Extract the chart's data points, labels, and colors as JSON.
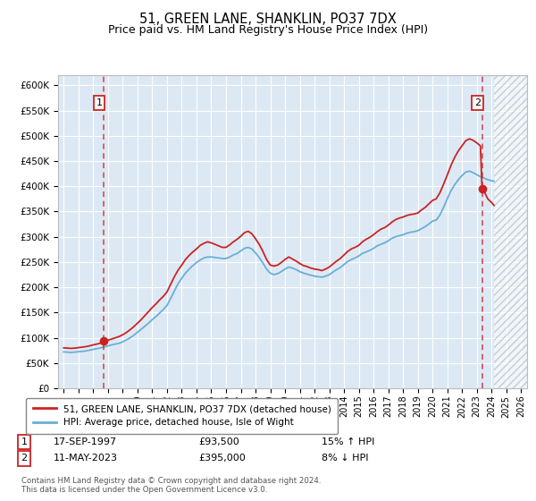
{
  "title": "51, GREEN LANE, SHANKLIN, PO37 7DX",
  "subtitle": "Price paid vs. HM Land Registry's House Price Index (HPI)",
  "title_fontsize": 10.5,
  "subtitle_fontsize": 9,
  "ylim": [
    0,
    620000
  ],
  "yticks": [
    0,
    50000,
    100000,
    150000,
    200000,
    250000,
    300000,
    350000,
    400000,
    450000,
    500000,
    550000,
    600000
  ],
  "ytick_labels": [
    "£0",
    "£50K",
    "£100K",
    "£150K",
    "£200K",
    "£250K",
    "£300K",
    "£350K",
    "£400K",
    "£450K",
    "£500K",
    "£550K",
    "£600K"
  ],
  "xlim_min": 1994.6,
  "xlim_max": 2026.4,
  "bg_color": "#dce9f5",
  "grid_color": "#ffffff",
  "sale1_year": 1997.71,
  "sale1_price": 93500,
  "sale2_year": 2023.36,
  "sale2_price": 395000,
  "sale1_date": "17-SEP-1997",
  "sale1_amount": "£93,500",
  "sale1_pct": "15% ↑ HPI",
  "sale2_date": "11-MAY-2023",
  "sale2_amount": "£395,000",
  "sale2_pct": "8% ↓ HPI",
  "hpi_color": "#6baed6",
  "price_color": "#cc2222",
  "legend_label_price": "51, GREEN LANE, SHANKLIN, PO37 7DX (detached house)",
  "legend_label_hpi": "HPI: Average price, detached house, Isle of Wight",
  "footer1": "Contains HM Land Registry data © Crown copyright and database right 2024.",
  "footer2": "This data is licensed under the Open Government Licence v3.0.",
  "hatch_start_year": 2024.17,
  "hpi_data": [
    [
      1995.0,
      72000
    ],
    [
      1995.25,
      71500
    ],
    [
      1995.5,
      71000
    ],
    [
      1995.75,
      71500
    ],
    [
      1996.0,
      72500
    ],
    [
      1996.25,
      73000
    ],
    [
      1996.5,
      74000
    ],
    [
      1996.75,
      75500
    ],
    [
      1997.0,
      77000
    ],
    [
      1997.25,
      78500
    ],
    [
      1997.5,
      80000
    ],
    [
      1997.75,
      82000
    ],
    [
      1998.0,
      84000
    ],
    [
      1998.25,
      86000
    ],
    [
      1998.5,
      87500
    ],
    [
      1998.75,
      89000
    ],
    [
      1999.0,
      92000
    ],
    [
      1999.25,
      96000
    ],
    [
      1999.5,
      100000
    ],
    [
      1999.75,
      105000
    ],
    [
      2000.0,
      111000
    ],
    [
      2000.25,
      117000
    ],
    [
      2000.5,
      123000
    ],
    [
      2000.75,
      129000
    ],
    [
      2001.0,
      136000
    ],
    [
      2001.25,
      142000
    ],
    [
      2001.5,
      149000
    ],
    [
      2001.75,
      156000
    ],
    [
      2002.0,
      164000
    ],
    [
      2002.25,
      178000
    ],
    [
      2002.5,
      193000
    ],
    [
      2002.75,
      207000
    ],
    [
      2003.0,
      218000
    ],
    [
      2003.25,
      228000
    ],
    [
      2003.5,
      236000
    ],
    [
      2003.75,
      243000
    ],
    [
      2004.0,
      249000
    ],
    [
      2004.25,
      254000
    ],
    [
      2004.5,
      258000
    ],
    [
      2004.75,
      260000
    ],
    [
      2005.0,
      260000
    ],
    [
      2005.25,
      259000
    ],
    [
      2005.5,
      258000
    ],
    [
      2005.75,
      257000
    ],
    [
      2006.0,
      257000
    ],
    [
      2006.25,
      260000
    ],
    [
      2006.5,
      264000
    ],
    [
      2006.75,
      267000
    ],
    [
      2007.0,
      272000
    ],
    [
      2007.25,
      277000
    ],
    [
      2007.5,
      279000
    ],
    [
      2007.75,
      276000
    ],
    [
      2008.0,
      268000
    ],
    [
      2008.25,
      259000
    ],
    [
      2008.5,
      248000
    ],
    [
      2008.75,
      236000
    ],
    [
      2009.0,
      228000
    ],
    [
      2009.25,
      225000
    ],
    [
      2009.5,
      227000
    ],
    [
      2009.75,
      231000
    ],
    [
      2010.0,
      236000
    ],
    [
      2010.25,
      240000
    ],
    [
      2010.5,
      238000
    ],
    [
      2010.75,
      235000
    ],
    [
      2011.0,
      231000
    ],
    [
      2011.25,
      228000
    ],
    [
      2011.5,
      226000
    ],
    [
      2011.75,
      224000
    ],
    [
      2012.0,
      222000
    ],
    [
      2012.25,
      221000
    ],
    [
      2012.5,
      220000
    ],
    [
      2012.75,
      222000
    ],
    [
      2013.0,
      225000
    ],
    [
      2013.25,
      230000
    ],
    [
      2013.5,
      235000
    ],
    [
      2013.75,
      239000
    ],
    [
      2014.0,
      245000
    ],
    [
      2014.25,
      251000
    ],
    [
      2014.5,
      255000
    ],
    [
      2014.75,
      258000
    ],
    [
      2015.0,
      262000
    ],
    [
      2015.25,
      267000
    ],
    [
      2015.5,
      270000
    ],
    [
      2015.75,
      273000
    ],
    [
      2016.0,
      277000
    ],
    [
      2016.25,
      282000
    ],
    [
      2016.5,
      285000
    ],
    [
      2016.75,
      288000
    ],
    [
      2017.0,
      292000
    ],
    [
      2017.25,
      297000
    ],
    [
      2017.5,
      300000
    ],
    [
      2017.75,
      302000
    ],
    [
      2018.0,
      304000
    ],
    [
      2018.25,
      307000
    ],
    [
      2018.5,
      309000
    ],
    [
      2018.75,
      310000
    ],
    [
      2019.0,
      312000
    ],
    [
      2019.25,
      316000
    ],
    [
      2019.5,
      320000
    ],
    [
      2019.75,
      325000
    ],
    [
      2020.0,
      331000
    ],
    [
      2020.25,
      333000
    ],
    [
      2020.5,
      343000
    ],
    [
      2020.75,
      358000
    ],
    [
      2021.0,
      375000
    ],
    [
      2021.25,
      391000
    ],
    [
      2021.5,
      403000
    ],
    [
      2021.75,
      413000
    ],
    [
      2022.0,
      421000
    ],
    [
      2022.25,
      428000
    ],
    [
      2022.5,
      430000
    ],
    [
      2022.75,
      427000
    ],
    [
      2023.0,
      423000
    ],
    [
      2023.25,
      419000
    ],
    [
      2023.5,
      416000
    ],
    [
      2023.75,
      413000
    ],
    [
      2024.0,
      411000
    ],
    [
      2024.17,
      410000
    ]
  ],
  "price_data": [
    [
      1995.0,
      80000
    ],
    [
      1995.25,
      79500
    ],
    [
      1995.5,
      79000
    ],
    [
      1995.75,
      79500
    ],
    [
      1996.0,
      80500
    ],
    [
      1996.25,
      81500
    ],
    [
      1996.5,
      82500
    ],
    [
      1996.75,
      84000
    ],
    [
      1997.0,
      86000
    ],
    [
      1997.25,
      87500
    ],
    [
      1997.5,
      89500
    ],
    [
      1997.71,
      93500
    ],
    [
      1997.75,
      93500
    ],
    [
      1998.0,
      95000
    ],
    [
      1998.25,
      97500
    ],
    [
      1998.5,
      100000
    ],
    [
      1998.75,
      102500
    ],
    [
      1999.0,
      106000
    ],
    [
      1999.25,
      110500
    ],
    [
      1999.5,
      116000
    ],
    [
      1999.75,
      122000
    ],
    [
      2000.0,
      129000
    ],
    [
      2000.25,
      136000
    ],
    [
      2000.5,
      144000
    ],
    [
      2000.75,
      152000
    ],
    [
      2001.0,
      160000
    ],
    [
      2001.25,
      167000
    ],
    [
      2001.5,
      175000
    ],
    [
      2001.75,
      182000
    ],
    [
      2002.0,
      191000
    ],
    [
      2002.25,
      206000
    ],
    [
      2002.5,
      221000
    ],
    [
      2002.75,
      234000
    ],
    [
      2003.0,
      244000
    ],
    [
      2003.25,
      255000
    ],
    [
      2003.5,
      263000
    ],
    [
      2003.75,
      270000
    ],
    [
      2004.0,
      276000
    ],
    [
      2004.25,
      283000
    ],
    [
      2004.5,
      287000
    ],
    [
      2004.75,
      290000
    ],
    [
      2005.0,
      288000
    ],
    [
      2005.25,
      285000
    ],
    [
      2005.5,
      282000
    ],
    [
      2005.75,
      279000
    ],
    [
      2006.0,
      279000
    ],
    [
      2006.25,
      284000
    ],
    [
      2006.5,
      290000
    ],
    [
      2006.75,
      295000
    ],
    [
      2007.0,
      301000
    ],
    [
      2007.25,
      308000
    ],
    [
      2007.5,
      311000
    ],
    [
      2007.75,
      306000
    ],
    [
      2008.0,
      296000
    ],
    [
      2008.25,
      285000
    ],
    [
      2008.5,
      271000
    ],
    [
      2008.75,
      255000
    ],
    [
      2009.0,
      244000
    ],
    [
      2009.25,
      242000
    ],
    [
      2009.5,
      244000
    ],
    [
      2009.75,
      249000
    ],
    [
      2010.0,
      255000
    ],
    [
      2010.25,
      260000
    ],
    [
      2010.5,
      256000
    ],
    [
      2010.75,
      252000
    ],
    [
      2011.0,
      247000
    ],
    [
      2011.25,
      243000
    ],
    [
      2011.5,
      241000
    ],
    [
      2011.75,
      238000
    ],
    [
      2012.0,
      236000
    ],
    [
      2012.25,
      235000
    ],
    [
      2012.5,
      233000
    ],
    [
      2012.75,
      236000
    ],
    [
      2013.0,
      240000
    ],
    [
      2013.25,
      246000
    ],
    [
      2013.5,
      252000
    ],
    [
      2013.75,
      257000
    ],
    [
      2014.0,
      264000
    ],
    [
      2014.25,
      271000
    ],
    [
      2014.5,
      276000
    ],
    [
      2014.75,
      279000
    ],
    [
      2015.0,
      283000
    ],
    [
      2015.25,
      290000
    ],
    [
      2015.5,
      295000
    ],
    [
      2015.75,
      299000
    ],
    [
      2016.0,
      304000
    ],
    [
      2016.25,
      310000
    ],
    [
      2016.5,
      315000
    ],
    [
      2016.75,
      318000
    ],
    [
      2017.0,
      323000
    ],
    [
      2017.25,
      329000
    ],
    [
      2017.5,
      334000
    ],
    [
      2017.75,
      337000
    ],
    [
      2018.0,
      339000
    ],
    [
      2018.25,
      342000
    ],
    [
      2018.5,
      344000
    ],
    [
      2018.75,
      345000
    ],
    [
      2019.0,
      347000
    ],
    [
      2019.25,
      353000
    ],
    [
      2019.5,
      358000
    ],
    [
      2019.75,
      365000
    ],
    [
      2020.0,
      372000
    ],
    [
      2020.25,
      375000
    ],
    [
      2020.5,
      387000
    ],
    [
      2020.75,
      404000
    ],
    [
      2021.0,
      422000
    ],
    [
      2021.25,
      441000
    ],
    [
      2021.5,
      457000
    ],
    [
      2021.75,
      470000
    ],
    [
      2022.0,
      480000
    ],
    [
      2022.25,
      490000
    ],
    [
      2022.5,
      494000
    ],
    [
      2022.75,
      491000
    ],
    [
      2023.0,
      486000
    ],
    [
      2023.25,
      480000
    ],
    [
      2023.36,
      395000
    ],
    [
      2023.5,
      390000
    ],
    [
      2023.75,
      375000
    ],
    [
      2024.0,
      368000
    ],
    [
      2024.17,
      362000
    ]
  ]
}
